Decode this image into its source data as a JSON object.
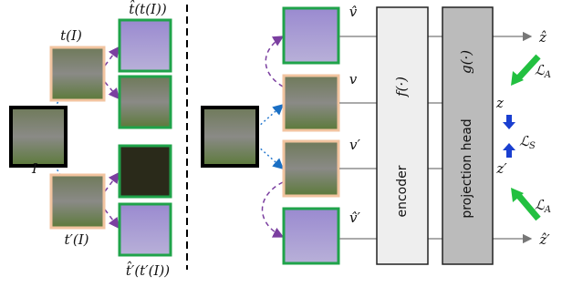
{
  "left": {
    "input": "I",
    "t_label": "t(I)",
    "t2_label": "t′(I)",
    "t_hat_label": "t̂(t(I))",
    "t2_hat_label": "t̂′(t′(I))"
  },
  "right": {
    "views": [
      "v̂",
      "v",
      "v′",
      "v̂′"
    ],
    "encoder": {
      "name": "encoder",
      "func": "f(·)"
    },
    "head": {
      "name": "projection head",
      "func": "g(·)"
    },
    "outputs": [
      "ẑ",
      "z",
      "z′",
      "ẑ′"
    ],
    "loss_a": {
      "symbol": "ℒ",
      "sub": "A"
    },
    "loss_s": {
      "symbol": "ℒ",
      "sub": "S"
    }
  }
}
